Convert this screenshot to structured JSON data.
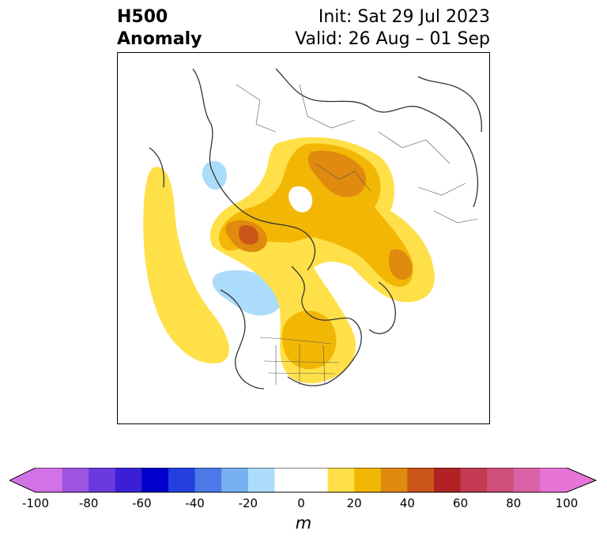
{
  "title": {
    "line1": "H500",
    "line2": "Anomaly"
  },
  "info": {
    "init": "Init: Sat 29 Jul 2023",
    "valid": "Valid: 26 Aug – 01 Sep"
  },
  "colorbar": {
    "unit": "m",
    "ticks": [
      "-100",
      "-80",
      "-60",
      "-40",
      "-20",
      "0",
      "20",
      "40",
      "60",
      "80",
      "100"
    ],
    "tick_values": [
      -100,
      -80,
      -60,
      -40,
      -20,
      0,
      20,
      40,
      60,
      80,
      100
    ],
    "bins": [
      {
        "from": -100,
        "to": -90,
        "color": "#d272e6"
      },
      {
        "from": -90,
        "to": -80,
        "color": "#9e55e2"
      },
      {
        "from": -80,
        "to": -70,
        "color": "#6b3ade"
      },
      {
        "from": -70,
        "to": -60,
        "color": "#3a1fd6"
      },
      {
        "from": -60,
        "to": -50,
        "color": "#0000cd"
      },
      {
        "from": -50,
        "to": -40,
        "color": "#2340df"
      },
      {
        "from": -40,
        "to": -30,
        "color": "#4d78e8"
      },
      {
        "from": -30,
        "to": -20,
        "color": "#76b0f0"
      },
      {
        "from": -20,
        "to": -10,
        "color": "#acdcfb"
      },
      {
        "from": -10,
        "to": 0,
        "color": "#ffffff"
      },
      {
        "from": 0,
        "to": 10,
        "color": "#ffffff"
      },
      {
        "from": 10,
        "to": 20,
        "color": "#ffe048"
      },
      {
        "from": 20,
        "to": 30,
        "color": "#f2b705"
      },
      {
        "from": 30,
        "to": 40,
        "color": "#e08a10"
      },
      {
        "from": 40,
        "to": 50,
        "color": "#cc5518"
      },
      {
        "from": 50,
        "to": 60,
        "color": "#b22222"
      },
      {
        "from": 60,
        "to": 70,
        "color": "#c43a52"
      },
      {
        "from": 70,
        "to": 80,
        "color": "#d04f7c"
      },
      {
        "from": 80,
        "to": 90,
        "color": "#db62a8"
      },
      {
        "from": 90,
        "to": 100,
        "color": "#e774d6"
      }
    ],
    "extend_low_color": "#d272e6",
    "extend_high_color": "#e774d6"
  },
  "map": {
    "projection": "polar-stereographic-north",
    "features": [
      "coastlines",
      "country-borders",
      "state-borders"
    ]
  }
}
